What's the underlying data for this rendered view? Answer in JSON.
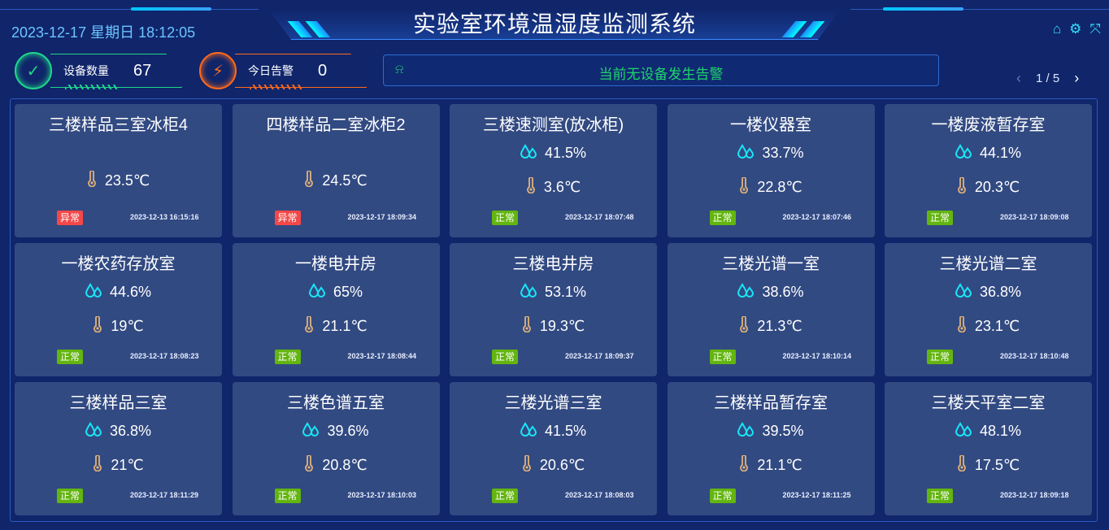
{
  "header": {
    "title": "实验室环境温湿度监测系统",
    "datetime": "2023-12-17 星期日 18:12:05",
    "icons": [
      "home-icon",
      "gear-icon",
      "fullscreen-icon"
    ]
  },
  "stats": [
    {
      "label": "设备数量",
      "value": "67",
      "icon": "check-cycle-icon",
      "color": "#1fd88a"
    },
    {
      "label": "今日告警",
      "value": "0",
      "icon": "alarm-light-icon",
      "color": "#ff6a1a"
    }
  ],
  "alert": {
    "icon": "alarm-icon",
    "text": "当前无设备发生告警",
    "color": "#1fd46e"
  },
  "pager": {
    "text": "1 / 5",
    "prev": "‹",
    "next": "›"
  },
  "status_colors": {
    "正常": "#63b50f",
    "异常": "#f44848"
  },
  "devices": [
    {
      "name": "三楼样品三室冰柜4",
      "humidity": null,
      "temperature": "23.5℃",
      "status": "异常",
      "time": "2023-12-13 16:15:16"
    },
    {
      "name": "四楼样品二室冰柜2",
      "humidity": null,
      "temperature": "24.5℃",
      "status": "异常",
      "time": "2023-12-17 18:09:34"
    },
    {
      "name": "三楼速测室(放冰柜)",
      "humidity": "41.5%",
      "temperature": "3.6℃",
      "status": "正常",
      "time": "2023-12-17 18:07:48"
    },
    {
      "name": "一楼仪器室",
      "humidity": "33.7%",
      "temperature": "22.8℃",
      "status": "正常",
      "time": "2023-12-17 18:07:46"
    },
    {
      "name": "一楼废液暂存室",
      "humidity": "44.1%",
      "temperature": "20.3℃",
      "status": "正常",
      "time": "2023-12-17 18:09:08"
    },
    {
      "name": "一楼农药存放室",
      "humidity": "44.6%",
      "temperature": "19℃",
      "status": "正常",
      "time": "2023-12-17 18:08:23"
    },
    {
      "name": "一楼电井房",
      "humidity": "65%",
      "temperature": "21.1℃",
      "status": "正常",
      "time": "2023-12-17 18:08:44"
    },
    {
      "name": "三楼电井房",
      "humidity": "53.1%",
      "temperature": "19.3℃",
      "status": "正常",
      "time": "2023-12-17 18:09:37"
    },
    {
      "name": "三楼光谱一室",
      "humidity": "38.6%",
      "temperature": "21.3℃",
      "status": "正常",
      "time": "2023-12-17 18:10:14"
    },
    {
      "name": "三楼光谱二室",
      "humidity": "36.8%",
      "temperature": "23.1℃",
      "status": "正常",
      "time": "2023-12-17 18:10:48"
    },
    {
      "name": "三楼样品三室",
      "humidity": "36.8%",
      "temperature": "21℃",
      "status": "正常",
      "time": "2023-12-17 18:11:29"
    },
    {
      "name": "三楼色谱五室",
      "humidity": "39.6%",
      "temperature": "20.8℃",
      "status": "正常",
      "time": "2023-12-17 18:10:03"
    },
    {
      "name": "三楼光谱三室",
      "humidity": "41.5%",
      "temperature": "20.6℃",
      "status": "正常",
      "time": "2023-12-17 18:08:03"
    },
    {
      "name": "三楼样品暂存室",
      "humidity": "39.5%",
      "temperature": "21.1℃",
      "status": "正常",
      "time": "2023-12-17 18:11:25"
    },
    {
      "name": "三楼天平室二室",
      "humidity": "48.1%",
      "temperature": "17.5℃",
      "status": "正常",
      "time": "2023-12-17 18:09:18"
    }
  ]
}
